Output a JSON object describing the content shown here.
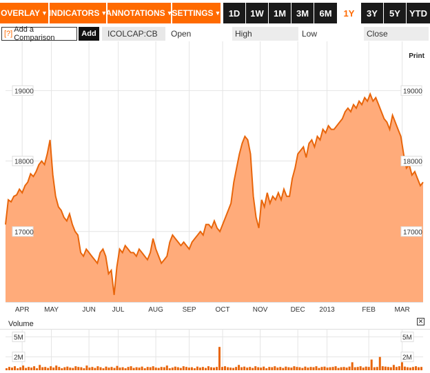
{
  "toolbar": {
    "menus": [
      {
        "label": "OVERLAY"
      },
      {
        "label": "INDICATORS"
      },
      {
        "label": "ANNOTATIONS"
      },
      {
        "label": "SETTINGS"
      }
    ],
    "ranges": [
      {
        "label": "1D",
        "active": false
      },
      {
        "label": "1W",
        "active": false
      },
      {
        "label": "1M",
        "active": false
      },
      {
        "label": "3M",
        "active": false
      },
      {
        "label": "6M",
        "active": false
      },
      {
        "label": "1Y",
        "active": true
      },
      {
        "label": "3Y",
        "active": false
      },
      {
        "label": "5Y",
        "active": false
      },
      {
        "label": "YTD",
        "active": false
      }
    ],
    "arrow_glyph": "▼"
  },
  "compare": {
    "prefix": "[?]",
    "label": "Add a Comparison",
    "add_button": "Add"
  },
  "quote": {
    "ticker": "ICOLCAP:CB",
    "open_label": "Open",
    "high_label": "High",
    "low_label": "Low",
    "close_label": "Close"
  },
  "print_label": "Print",
  "colors": {
    "accent": "#ff6a00",
    "line": "#e8650a",
    "fill": "#ffab7a",
    "dark": "#1a1a1a"
  },
  "chart_data": {
    "type": "area",
    "ylim": [
      16000,
      19600
    ],
    "yticks": [
      17000,
      18000,
      19000
    ],
    "ytick_labels": [
      "17000",
      "18000",
      "19000"
    ],
    "x_labels": [
      "APR",
      "MAY",
      "JUN",
      "JUL",
      "AUG",
      "SEP",
      "OCT",
      "NOV",
      "DEC",
      "2013",
      "FEB",
      "MAR"
    ],
    "x_label_pos": [
      0.03,
      0.1,
      0.19,
      0.26,
      0.35,
      0.43,
      0.51,
      0.6,
      0.69,
      0.76,
      0.86,
      0.94
    ],
    "values": [
      17100,
      17450,
      17420,
      17500,
      17520,
      17600,
      17550,
      17650,
      17700,
      17820,
      17780,
      17850,
      17950,
      18000,
      17950,
      18100,
      18300,
      17800,
      17500,
      17350,
      17300,
      17200,
      17150,
      17250,
      17100,
      17000,
      16950,
      16700,
      16650,
      16750,
      16700,
      16650,
      16600,
      16550,
      16700,
      16750,
      16650,
      16400,
      16450,
      16100,
      16500,
      16750,
      16700,
      16800,
      16750,
      16700,
      16700,
      16650,
      16750,
      16700,
      16650,
      16600,
      16700,
      16900,
      16750,
      16650,
      16550,
      16600,
      16650,
      16850,
      16950,
      16900,
      16850,
      16800,
      16850,
      16800,
      16750,
      16850,
      16900,
      16950,
      17000,
      16950,
      17100,
      17100,
      17050,
      17150,
      17050,
      17000,
      17100,
      17200,
      17300,
      17400,
      17700,
      17900,
      18100,
      18250,
      18350,
      18300,
      18100,
      17500,
      17200,
      17050,
      17450,
      17350,
      17550,
      17400,
      17500,
      17450,
      17550,
      17450,
      17600,
      17500,
      17500,
      17750,
      17900,
      18100,
      18150,
      18200,
      18050,
      18250,
      18300,
      18200,
      18350,
      18300,
      18450,
      18400,
      18500,
      18450,
      18450,
      18500,
      18550,
      18600,
      18700,
      18750,
      18700,
      18800,
      18750,
      18850,
      18800,
      18900,
      18850,
      18950,
      18850,
      18900,
      18800,
      18700,
      18600,
      18550,
      18450,
      18650,
      18550,
      18450,
      18350,
      18100,
      17900,
      17950,
      17800,
      17850,
      17750,
      17650,
      17700
    ]
  },
  "volume": {
    "label": "Volume",
    "close_glyph": "✕",
    "ylim": [
      0,
      6000000
    ],
    "yticks": [
      2000000,
      5000000
    ],
    "ytick_labels": [
      "2M",
      "5M"
    ],
    "values": [
      300000,
      500000,
      400000,
      600000,
      300000,
      450000,
      700000,
      350000,
      500000,
      400000,
      600000,
      300000,
      800000,
      450000,
      500000,
      350000,
      600000,
      400000,
      700000,
      500000,
      300000,
      450000,
      550000,
      400000,
      350000,
      600000,
      500000,
      450000,
      300000,
      700000,
      400000,
      500000,
      350000,
      600000,
      450000,
      300000,
      550000,
      400000,
      500000,
      350000,
      650000,
      400000,
      450000,
      300000,
      500000,
      600000,
      350000,
      450000,
      400000,
      550000,
      300000,
      500000,
      450000,
      600000,
      400000,
      350000,
      500000,
      450000,
      700000,
      300000,
      400000,
      550000,
      450000,
      350000,
      600000,
      500000,
      400000,
      450000,
      300000,
      550000,
      400000,
      500000,
      350000,
      600000,
      450000,
      400000,
      500000,
      3500000,
      500000,
      600000,
      450000,
      400000,
      350000,
      500000,
      800000,
      450000,
      550000,
      400000,
      500000,
      350000,
      600000,
      450000,
      400000,
      550000,
      300000,
      500000,
      450000,
      600000,
      400000,
      500000,
      350000,
      550000,
      450000,
      400000,
      600000,
      500000,
      450000,
      350000,
      550000,
      400000,
      500000,
      450000,
      600000,
      350000,
      500000,
      550000,
      400000,
      450000,
      500000,
      600000,
      350000,
      450000,
      500000,
      400000,
      550000,
      1200000,
      450000,
      500000,
      600000,
      400000,
      550000,
      500000,
      1600000,
      450000,
      500000,
      2000000,
      600000,
      550000,
      500000,
      450000,
      800000,
      500000,
      600000,
      1200000,
      550000,
      450000,
      400000,
      500000,
      600000,
      450000,
      500000
    ]
  }
}
